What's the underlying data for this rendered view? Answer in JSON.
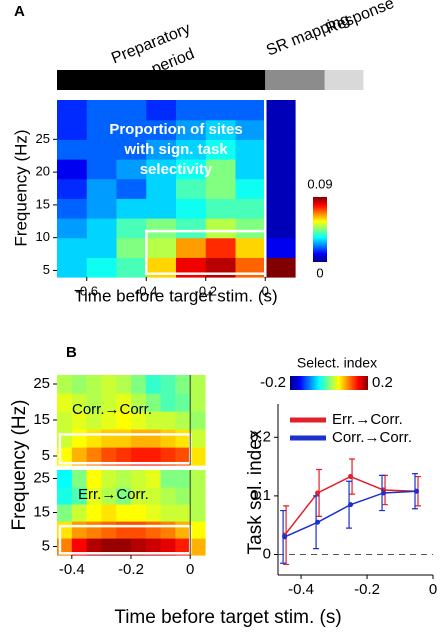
{
  "chart_data": [
    {
      "type": "heatmap",
      "panel": "A",
      "epochs": [
        {
          "label": [
            "Preparatory",
            "period"
          ],
          "range": [
            -0.7,
            0
          ],
          "color": "#000000"
        },
        {
          "label": [
            "SR mapping"
          ],
          "range": [
            0,
            0.2
          ],
          "color": "#8c8c8c"
        },
        {
          "label": [
            "Response"
          ],
          "range": [
            0.2,
            0.33
          ],
          "color": "#d9d9d9"
        }
      ],
      "annotation": [
        "Proportion of sites",
        "with sign. task",
        "selectivity"
      ],
      "xlabel": "Time before target stim. (s)",
      "ylabel": "Frequency (Hz)",
      "xlim": [
        -0.7,
        0.1
      ],
      "ylim": [
        4,
        31
      ],
      "xticks": [
        -0.6,
        -0.4,
        -0.2,
        0
      ],
      "yticks": [
        5,
        10,
        15,
        20,
        25
      ],
      "clim": [
        0,
        0.09
      ],
      "cticks": [
        0,
        0.09
      ],
      "box": {
        "x": [
          -0.4,
          0
        ],
        "y": [
          4.5,
          11
        ]
      },
      "vline": 0,
      "line_color": "#ffffff",
      "z": [
        [
          0.03,
          0.035,
          0.04,
          0.06,
          0.08,
          0.085,
          0.07,
          0.09
        ],
        [
          0.03,
          0.03,
          0.045,
          0.05,
          0.065,
          0.075,
          0.06,
          0.01
        ],
        [
          0.025,
          0.03,
          0.04,
          0.045,
          0.04,
          0.05,
          0.045,
          0.005
        ],
        [
          0.02,
          0.025,
          0.03,
          0.03,
          0.035,
          0.04,
          0.04,
          0.005
        ],
        [
          0.015,
          0.025,
          0.02,
          0.03,
          0.04,
          0.045,
          0.035,
          0.005
        ],
        [
          0.01,
          0.02,
          0.025,
          0.03,
          0.035,
          0.045,
          0.03,
          0.005
        ],
        [
          0.02,
          0.02,
          0.02,
          0.025,
          0.03,
          0.035,
          0.03,
          0.005
        ],
        [
          0.015,
          0.02,
          0.02,
          0.02,
          0.025,
          0.03,
          0.025,
          0.005
        ],
        [
          0.015,
          0.02,
          0.02,
          0.015,
          0.02,
          0.02,
          0.02,
          0.005
        ]
      ]
    },
    {
      "type": "heatmap",
      "panel": "B",
      "annotation": [
        "Corr.→Corr."
      ],
      "ylabel": "Frequency (Hz)",
      "colorbar_title": "Select. index",
      "xlim": [
        -0.45,
        0.05
      ],
      "ylim": [
        2.5,
        27.5
      ],
      "yticks": [
        5,
        15,
        25
      ],
      "clim": [
        -0.2,
        0.2
      ],
      "cticks": [
        -0.2,
        0.2
      ],
      "box": {
        "x": [
          -0.44,
          0
        ],
        "y": [
          3,
          11
        ]
      },
      "vline": 0,
      "line_color": "#ffffff",
      "z": [
        [
          0.05,
          0.08,
          0.1,
          0.12,
          0.13,
          0.14,
          0.14,
          0.13,
          0.12,
          0.06
        ],
        [
          0.03,
          0.05,
          0.06,
          0.07,
          0.07,
          0.08,
          0.08,
          0.07,
          0.06,
          0.03
        ],
        [
          0.03,
          0.04,
          0.03,
          0.04,
          0.05,
          0.04,
          0.03,
          0.03,
          0.02,
          0.01
        ],
        [
          0.04,
          0.03,
          0.02,
          0.03,
          0.04,
          0.02,
          0.0,
          -0.02,
          -0.01,
          0.02
        ],
        [
          0.02,
          0.01,
          0.02,
          0.03,
          0.02,
          0.0,
          -0.03,
          -0.02,
          0.0,
          0.02
        ]
      ]
    },
    {
      "type": "heatmap",
      "annotation": [
        "Err.→Corr."
      ],
      "xlabel": "Time before target stim. (s)",
      "xlim": [
        -0.45,
        0.05
      ],
      "ylim": [
        2.5,
        27.5
      ],
      "xticks": [
        -0.4,
        -0.2,
        0
      ],
      "yticks": [
        5,
        15,
        25
      ],
      "clim": [
        -0.2,
        0.2
      ],
      "box": {
        "x": [
          -0.44,
          0
        ],
        "y": [
          3,
          11
        ]
      },
      "vline": 0,
      "line_color": "#ffffff",
      "z": [
        [
          0.1,
          0.15,
          0.18,
          0.19,
          0.19,
          0.18,
          0.17,
          0.16,
          0.14,
          0.08
        ],
        [
          0.06,
          0.09,
          0.1,
          0.11,
          0.12,
          0.12,
          0.11,
          0.1,
          0.08,
          0.05
        ],
        [
          0.0,
          0.03,
          0.05,
          0.06,
          0.05,
          0.05,
          0.04,
          0.03,
          0.03,
          0.02
        ],
        [
          -0.04,
          -0.02,
          0.04,
          0.02,
          0.0,
          0.03,
          0.03,
          0.02,
          0.01,
          0.02
        ],
        [
          -0.05,
          0.0,
          0.05,
          0.03,
          0.02,
          0.03,
          0.04,
          0.0,
          0.0,
          0.02
        ]
      ]
    },
    {
      "type": "line",
      "ylabel": "Task sel. index",
      "x": [
        -0.45,
        -0.35,
        -0.25,
        -0.15,
        -0.05
      ],
      "xlim": [
        -0.47,
        0
      ],
      "ylim": [
        -0.035,
        0.25
      ],
      "xticks": [
        -0.4,
        -0.2,
        0
      ],
      "yticks": [
        0,
        0.1,
        0.2
      ],
      "hline": 0,
      "series": [
        {
          "name": "Err.→Corr.",
          "color": "#e0202a",
          "values": [
            0.033,
            0.105,
            0.133,
            0.11,
            0.108
          ],
          "errors": [
            0.05,
            0.04,
            0.03,
            0.025,
            0.025
          ]
        },
        {
          "name": "Corr.→Corr.",
          "color": "#1c2fcf",
          "values": [
            0.03,
            0.055,
            0.085,
            0.105,
            0.108
          ],
          "errors": [
            0.045,
            0.045,
            0.04,
            0.03,
            0.03
          ]
        }
      ]
    }
  ]
}
